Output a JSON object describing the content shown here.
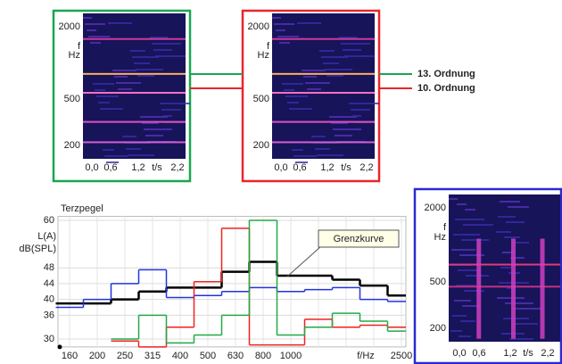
{
  "chart_data": {
    "type": "step",
    "title": "Terzpegel",
    "y_label": [
      "L(A)",
      "dB(SPL)"
    ],
    "x_label": "f/Hz",
    "categories": [
      "160",
      "200",
      "250",
      "315",
      "400",
      "500",
      "630",
      "800",
      "1000",
      null,
      null,
      null,
      "2500"
    ],
    "ylim": [
      28,
      61
    ],
    "yticks": [
      30,
      36,
      40,
      44,
      48,
      60
    ],
    "grid": true,
    "annotation": "Grenzkurve",
    "series": [
      {
        "color": "#000000",
        "values": [
          39,
          39,
          40,
          42,
          43,
          43,
          47,
          49.5,
          46,
          46,
          45,
          43.5,
          41
        ]
      },
      {
        "color": "#2233dd",
        "values": [
          38,
          40,
          44,
          47.5,
          40.5,
          41,
          42,
          43,
          42,
          42.5,
          43,
          40,
          39.5
        ]
      },
      {
        "color": "#ee2222",
        "values": [
          null,
          null,
          29.5,
          28,
          33,
          44.5,
          58,
          28.5,
          28.5,
          35,
          33,
          33.5,
          33
        ]
      },
      {
        "color": "#22aa44",
        "values": [
          null,
          null,
          30,
          36,
          29,
          31,
          36,
          60,
          31,
          33,
          36.5,
          34.5,
          32
        ]
      }
    ]
  },
  "spectrograms": [
    {
      "border": "#1aa650",
      "yticks": [
        "2000",
        "500",
        "200"
      ],
      "y_label": [
        "f",
        "Hz"
      ],
      "xticks": [
        "0,0",
        "0,6",
        "1,2",
        "t/s",
        "2,2"
      ]
    },
    {
      "border": "#e8262a",
      "yticks": [
        "2000",
        "500",
        "200"
      ],
      "y_label": [
        "f",
        "Hz"
      ],
      "xticks": [
        "0,0",
        "0,6",
        "1,2",
        "t/s",
        "2,2"
      ]
    },
    {
      "border": "#2a2ad0",
      "yticks": [
        "2000",
        "500",
        "200"
      ],
      "y_label": [
        "f",
        "Hz"
      ],
      "xticks": [
        "0,0",
        "0,6",
        "1,2",
        "t/s",
        "2,2"
      ]
    }
  ],
  "legend": [
    {
      "label": "13. Ordnung",
      "color": "#1aa650"
    },
    {
      "label": "10. Ordnung",
      "color": "#e8262a"
    }
  ]
}
